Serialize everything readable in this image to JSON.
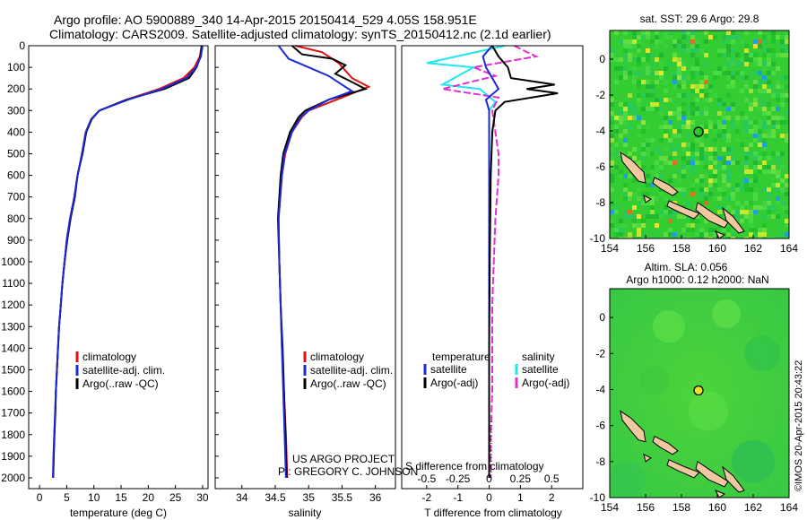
{
  "title": {
    "line1": "Argo profile: AO 5900889_340 14-Apr-2015 20150414_529 4.05S 158.951E",
    "line2": "Climatology: CARS2009. Satellite-adjusted climatology: synTS_20150412.nc (2.1d earlier)"
  },
  "credits": {
    "project": "US ARGO PROJECT",
    "pi": "PI: GREGORY C. JOHNSON",
    "imos": "©IMOS 20-Apr-2015 20:43:22"
  },
  "colors": {
    "climatology": "#e01010",
    "satellite": "#1a2bd6",
    "argo": "#000000",
    "sal_satellite": "#22e6ee",
    "sal_argo": "#e030d0",
    "ocean_base": "#2ecc2e",
    "land": "#f2c8a0"
  },
  "chart_data": [
    {
      "type": "line",
      "xlabel": "temperature (deg C)",
      "ylabel": "",
      "xlim": [
        -2,
        31
      ],
      "ylim": [
        2050,
        0
      ],
      "xticks": [
        "0",
        "5",
        "10",
        "15",
        "20",
        "25",
        "30"
      ],
      "yticks": [
        "0",
        "100",
        "200",
        "300",
        "400",
        "500",
        "600",
        "700",
        "800",
        "900",
        "1000",
        "1100",
        "1200",
        "1300",
        "1400",
        "1500",
        "1600",
        "1700",
        "1800",
        "1900",
        "2000"
      ],
      "legend": [
        "climatology",
        "satellite-adj. clim.",
        "Argo(..raw -QC)"
      ],
      "legend_position": "lower-center",
      "series": [
        {
          "name": "climatology",
          "points": [
            [
              29.8,
              0
            ],
            [
              29.5,
              50
            ],
            [
              28.5,
              100
            ],
            [
              26.5,
              150
            ],
            [
              22,
              200
            ],
            [
              16,
              250
            ],
            [
              11,
              300
            ],
            [
              9.5,
              340
            ],
            [
              8.5,
              400
            ],
            [
              7.8,
              500
            ],
            [
              7,
              600
            ],
            [
              6.4,
              700
            ],
            [
              5.6,
              800
            ],
            [
              5,
              900
            ],
            [
              4.6,
              1000
            ],
            [
              4.2,
              1100
            ],
            [
              3.9,
              1200
            ],
            [
              3.6,
              1300
            ],
            [
              3.4,
              1400
            ],
            [
              3.2,
              1500
            ],
            [
              3,
              1600
            ],
            [
              2.9,
              1700
            ],
            [
              2.7,
              1800
            ],
            [
              2.6,
              1900
            ],
            [
              2.5,
              2000
            ]
          ]
        },
        {
          "name": "satellite-adj. clim.",
          "points": [
            [
              30,
              0
            ],
            [
              29.7,
              50
            ],
            [
              28.8,
              100
            ],
            [
              27,
              150
            ],
            [
              22.5,
              200
            ],
            [
              16.3,
              250
            ],
            [
              11,
              300
            ],
            [
              9.5,
              340
            ],
            [
              8.5,
              400
            ],
            [
              7.8,
              500
            ],
            [
              7,
              600
            ],
            [
              6.4,
              700
            ],
            [
              5.6,
              800
            ],
            [
              5,
              900
            ],
            [
              4.6,
              1000
            ],
            [
              4.2,
              1100
            ],
            [
              3.9,
              1200
            ],
            [
              3.6,
              1300
            ],
            [
              3.4,
              1400
            ],
            [
              3.2,
              1500
            ],
            [
              3,
              1600
            ],
            [
              2.85,
              1700
            ],
            [
              2.7,
              1800
            ],
            [
              2.55,
              1900
            ],
            [
              2.45,
              2000
            ]
          ]
        },
        {
          "name": "Argo(..raw -QC)",
          "points": [
            [
              29.9,
              0
            ],
            [
              29.6,
              50
            ],
            [
              28.9,
              100
            ],
            [
              27.5,
              150
            ],
            [
              23,
              200
            ],
            [
              16,
              250
            ],
            [
              11,
              300
            ],
            [
              9.6,
              340
            ],
            [
              8.6,
              400
            ],
            [
              7.9,
              500
            ],
            [
              7,
              600
            ],
            [
              6.5,
              700
            ],
            [
              5.7,
              800
            ],
            [
              5.1,
              900
            ],
            [
              4.6,
              1000
            ],
            [
              4.2,
              1100
            ],
            [
              3.9,
              1200
            ],
            [
              3.6,
              1300
            ],
            [
              3.4,
              1400
            ],
            [
              3.2,
              1500
            ],
            [
              3,
              1600
            ],
            [
              2.9,
              1700
            ],
            [
              2.75,
              1800
            ],
            [
              2.6,
              1900
            ],
            [
              2.5,
              2000
            ]
          ]
        }
      ]
    },
    {
      "type": "line",
      "xlabel": "salinity",
      "xlim": [
        33.6,
        36.3
      ],
      "ylim": [
        2050,
        0
      ],
      "xticks": [
        "34",
        "34.5",
        "35",
        "35.5",
        "36"
      ],
      "legend": [
        "climatology",
        "satellite-adj. clim.",
        "Argo(..raw -QC)"
      ],
      "legend_position": "lower-center",
      "series": [
        {
          "name": "climatology",
          "points": [
            [
              34.8,
              0
            ],
            [
              35.2,
              30
            ],
            [
              35.45,
              80
            ],
            [
              35.65,
              150
            ],
            [
              35.9,
              190
            ],
            [
              35.5,
              240
            ],
            [
              35.0,
              300
            ],
            [
              34.9,
              330
            ],
            [
              34.75,
              400
            ],
            [
              34.65,
              500
            ],
            [
              34.6,
              600
            ],
            [
              34.55,
              800
            ],
            [
              34.56,
              1000
            ],
            [
              34.58,
              1200
            ],
            [
              34.6,
              1400
            ],
            [
              34.63,
              1600
            ],
            [
              34.66,
              1800
            ],
            [
              34.68,
              2000
            ]
          ]
        },
        {
          "name": "satellite-adj. clim.",
          "points": [
            [
              34.55,
              0
            ],
            [
              34.7,
              60
            ],
            [
              35.0,
              100
            ],
            [
              35.3,
              140
            ],
            [
              35.5,
              180
            ],
            [
              35.65,
              210
            ],
            [
              35.3,
              250
            ],
            [
              35.0,
              300
            ],
            [
              34.88,
              330
            ],
            [
              34.75,
              400
            ],
            [
              34.64,
              500
            ],
            [
              34.6,
              600
            ],
            [
              34.55,
              800
            ],
            [
              34.56,
              1000
            ],
            [
              34.58,
              1200
            ],
            [
              34.6,
              1400
            ],
            [
              34.62,
              1600
            ],
            [
              34.64,
              1800
            ],
            [
              34.66,
              2000
            ]
          ]
        },
        {
          "name": "Argo(..raw -QC)",
          "points": [
            [
              34.75,
              0
            ],
            [
              34.9,
              40
            ],
            [
              35.35,
              60
            ],
            [
              35.55,
              90
            ],
            [
              35.4,
              130
            ],
            [
              35.6,
              160
            ],
            [
              35.85,
              200
            ],
            [
              35.3,
              250
            ],
            [
              34.95,
              300
            ],
            [
              34.85,
              330
            ],
            [
              34.72,
              400
            ],
            [
              34.62,
              500
            ],
            [
              34.58,
              600
            ],
            [
              34.54,
              800
            ],
            [
              34.56,
              1000
            ],
            [
              34.58,
              1200
            ],
            [
              34.61,
              1400
            ],
            [
              34.63,
              1600
            ],
            [
              34.65,
              1800
            ],
            [
              34.67,
              2000
            ]
          ]
        }
      ]
    },
    {
      "type": "line",
      "xlabel": "T difference from climatology",
      "xlabel_top": "S difference from climatology",
      "xlim": [
        -2.8,
        3.0
      ],
      "ylim": [
        2050,
        0
      ],
      "xticks": [
        "-2",
        "-1",
        "0",
        "1",
        "2"
      ],
      "xticks_top": [
        "-0.5",
        "-0.25",
        "0",
        "0.25",
        "0.5"
      ],
      "legend_temperature_title": "temperature",
      "legend_salinity_title": "salinity",
      "legend_temperature": [
        "satellite",
        "Argo(-adj)"
      ],
      "legend_salinity": [
        "satellite",
        "Argo(-adj)"
      ],
      "series": [
        {
          "name": "temperature satellite",
          "points": [
            [
              0.1,
              0
            ],
            [
              -0.2,
              50
            ],
            [
              -0.1,
              100
            ],
            [
              0.1,
              150
            ],
            [
              0.3,
              200
            ],
            [
              -0.1,
              250
            ],
            [
              0,
              300
            ],
            [
              0,
              400
            ],
            [
              0,
              600
            ],
            [
              0,
              1000
            ],
            [
              0,
              1400
            ],
            [
              0,
              2000
            ]
          ]
        },
        {
          "name": "temperature Argo(-adj)",
          "points": [
            [
              0.1,
              0
            ],
            [
              0.3,
              50
            ],
            [
              0.6,
              100
            ],
            [
              0.7,
              150
            ],
            [
              2.1,
              180
            ],
            [
              1.2,
              200
            ],
            [
              2.2,
              220
            ],
            [
              0.5,
              260
            ],
            [
              0.2,
              300
            ],
            [
              0.1,
              400
            ],
            [
              0.05,
              600
            ],
            [
              0.02,
              1000
            ],
            [
              0,
              1400
            ],
            [
              0,
              2000
            ]
          ]
        },
        {
          "name": "salinity satellite",
          "points": [
            [
              0.5,
              0
            ],
            [
              -2.0,
              80
            ],
            [
              -0.5,
              100
            ],
            [
              -1.5,
              180
            ],
            [
              -0.3,
              200
            ],
            [
              0.2,
              260
            ],
            [
              0,
              300
            ],
            [
              0,
              400
            ],
            [
              0,
              600
            ],
            [
              0,
              1000
            ],
            [
              0,
              1400
            ],
            [
              0,
              2000
            ]
          ]
        },
        {
          "name": "salinity Argo(-adj)",
          "points": [
            [
              0.8,
              0
            ],
            [
              1.5,
              50
            ],
            [
              -0.5,
              100
            ],
            [
              0.2,
              140
            ],
            [
              -1.5,
              200
            ],
            [
              0.3,
              240
            ],
            [
              0.1,
              300
            ],
            [
              0.2,
              400
            ],
            [
              0.3,
              500
            ],
            [
              0.3,
              600
            ],
            [
              0.2,
              800
            ],
            [
              0.15,
              1000
            ],
            [
              0.1,
              1200
            ],
            [
              0.1,
              1400
            ],
            [
              0.1,
              1600
            ],
            [
              0.05,
              1800
            ],
            [
              0.05,
              2000
            ]
          ]
        }
      ]
    },
    {
      "type": "heatmap",
      "title": "sat. SST: 29.6 Argo: 29.8",
      "xlim": [
        154,
        164
      ],
      "ylim": [
        -10,
        1.6
      ],
      "xticks": [
        "154",
        "156",
        "158",
        "160",
        "162",
        "164"
      ],
      "yticks": [
        "-10",
        "-8",
        "-6",
        "-4",
        "-2",
        "0"
      ],
      "marker": {
        "lon": 158.951,
        "lat": -4.05
      }
    },
    {
      "type": "heatmap",
      "title_line1": "Altim. SLA: 0.056",
      "title_line2": "Argo h1000: 0.12 h2000: NaN",
      "xlim": [
        154,
        164
      ],
      "ylim": [
        -10,
        1.6
      ],
      "xticks": [
        "154",
        "156",
        "158",
        "160",
        "162",
        "164"
      ],
      "yticks": [
        "-10",
        "-8",
        "-6",
        "-4",
        "-2",
        "0"
      ],
      "marker": {
        "lon": 158.951,
        "lat": -4.05
      }
    }
  ]
}
